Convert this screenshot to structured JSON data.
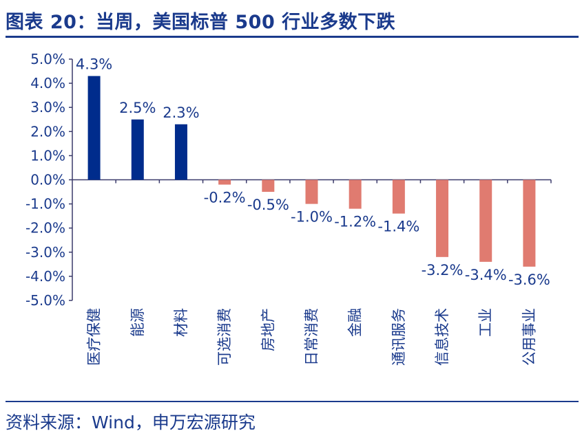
{
  "title": "图表 20：当周，美国标普 500 行业多数下跌",
  "source": "资料来源：Wind，申万宏源研究",
  "colors": {
    "positive": "#002c8c",
    "negative": "#e07b70",
    "text": "#1a3a8c",
    "axis": "#3a3a6a"
  },
  "chart_data": {
    "type": "bar",
    "categories": [
      "医疗保健",
      "能源",
      "材料",
      "可选消费",
      "房地产",
      "日常消费",
      "金融",
      "通讯服务",
      "信息技术",
      "工业",
      "公用事业"
    ],
    "values": [
      4.3,
      2.5,
      2.3,
      -0.2,
      -0.5,
      -1.0,
      -1.2,
      -1.4,
      -3.2,
      -3.4,
      -3.6
    ],
    "data_labels": [
      "4.3%",
      "2.5%",
      "2.3%",
      "-0.2%",
      "-0.5%",
      "-1.0%",
      "-1.2%",
      "-1.4%",
      "-3.2%",
      "-3.4%",
      "-3.6%"
    ],
    "ylim": [
      -5,
      5
    ],
    "yticks": [
      5,
      4,
      3,
      2,
      1,
      0,
      -1,
      -2,
      -3,
      -4,
      -5
    ],
    "ytick_labels": [
      "5.0%",
      "4.0%",
      "3.0%",
      "2.0%",
      "1.0%",
      "0.0%",
      "-1.0%",
      "-2.0%",
      "-3.0%",
      "-4.0%",
      "-5.0%"
    ],
    "grid": false,
    "legend": "none"
  }
}
